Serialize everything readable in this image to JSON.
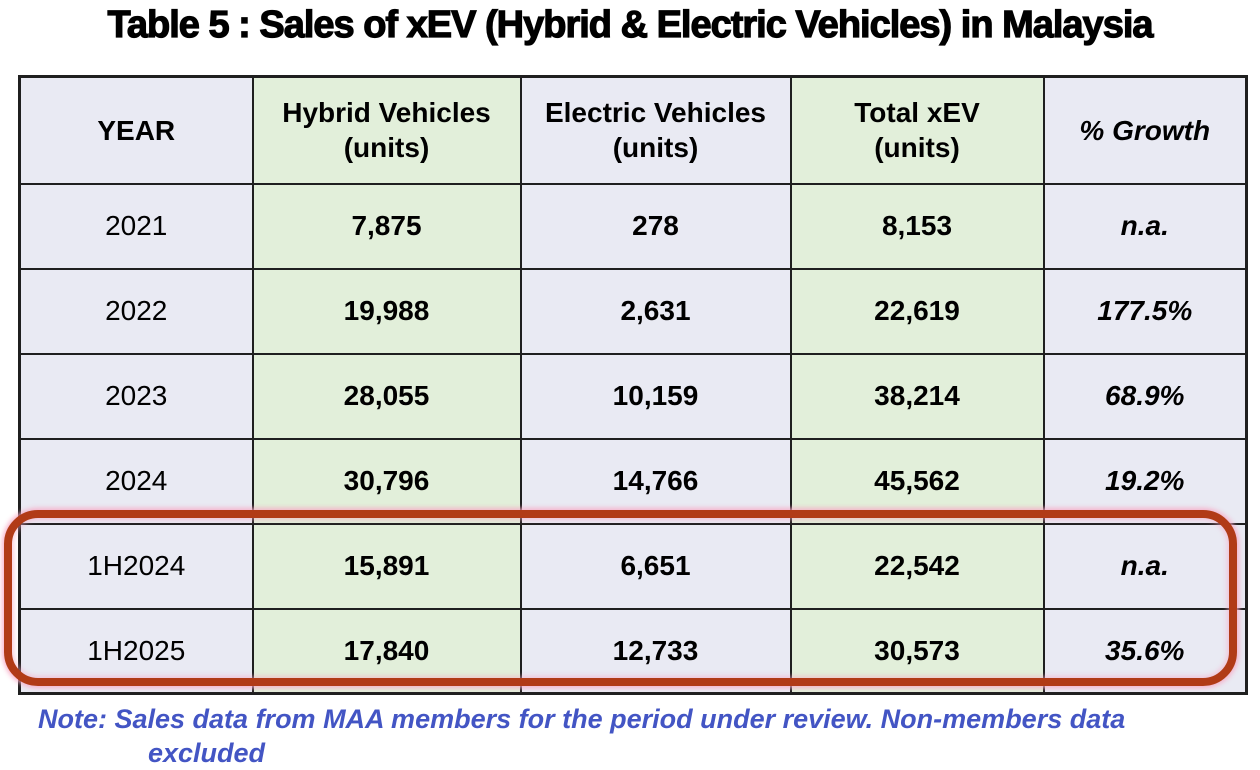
{
  "title": "Table 5 : Sales of xEV (Hybrid & Electric Vehicles) in Malaysia",
  "table": {
    "headers": {
      "year": "YEAR",
      "hybrid_line1": "Hybrid Vehicles",
      "hybrid_line2": "(units)",
      "electric_line1": "Electric Vehicles",
      "electric_line2": "(units)",
      "total_line1": "Total xEV",
      "total_line2": "(units)",
      "growth": "% Growth"
    },
    "rows": [
      {
        "year": "2021",
        "hybrid": "7,875",
        "electric": "278",
        "total": "8,153",
        "growth": "n.a."
      },
      {
        "year": "2022",
        "hybrid": "19,988",
        "electric": "2,631",
        "total": "22,619",
        "growth": "177.5%"
      },
      {
        "year": "2023",
        "hybrid": "28,055",
        "electric": "10,159",
        "total": "38,214",
        "growth": "68.9%"
      },
      {
        "year": "2024",
        "hybrid": "30,796",
        "electric": "14,766",
        "total": "45,562",
        "growth": "19.2%"
      },
      {
        "year": "1H2024",
        "hybrid": "15,891",
        "electric": "6,651",
        "total": "22,542",
        "growth": "n.a."
      },
      {
        "year": "1H2025",
        "hybrid": "17,840",
        "electric": "12,733",
        "total": "30,573",
        "growth": "35.6%"
      }
    ],
    "highlighted_rows": [
      "1H2024",
      "1H2025"
    ]
  },
  "note": {
    "line1": "Note: Sales data from MAA members for the period under review. Non-members data",
    "line2": "excluded"
  },
  "colors": {
    "green_column_bg": "#e2efda",
    "lavender_column_bg": "#e9eaf3",
    "table_border": "#1f1f1f",
    "highlight_stroke": "#b13b17",
    "highlight_glow": "#f8a8c4",
    "note_text": "#4355c4",
    "title_text": "#000000"
  }
}
